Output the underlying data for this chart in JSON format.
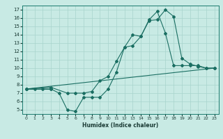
{
  "title": "",
  "xlabel": "Humidex (Indice chaleur)",
  "xlim": [
    -0.5,
    23.5
  ],
  "ylim": [
    4.5,
    17.5
  ],
  "xticks": [
    0,
    1,
    2,
    3,
    4,
    5,
    6,
    7,
    8,
    9,
    10,
    11,
    12,
    13,
    14,
    15,
    16,
    17,
    18,
    19,
    20,
    21,
    22,
    23
  ],
  "yticks": [
    5,
    6,
    7,
    8,
    9,
    10,
    11,
    12,
    13,
    14,
    15,
    16,
    17
  ],
  "bg_color": "#c8eae4",
  "line_color": "#1a6e62",
  "grid_color": "#a8d4cc",
  "line1_x": [
    0,
    1,
    2,
    3
  ],
  "line1_y": [
    7.5,
    7.5,
    7.5,
    7.5
  ],
  "line2_x": [
    0,
    3,
    4,
    5,
    6,
    7,
    8,
    9,
    10,
    11,
    12,
    13,
    14,
    15,
    16,
    17,
    18,
    19,
    20,
    21,
    22,
    23
  ],
  "line2_y": [
    7.5,
    7.5,
    7.0,
    5.0,
    4.8,
    6.5,
    6.5,
    6.5,
    7.5,
    9.5,
    12.5,
    12.7,
    13.8,
    15.7,
    15.8,
    17.0,
    16.2,
    11.2,
    10.5,
    10.2,
    10.0,
    10.0
  ],
  "line3_x": [
    0,
    3,
    5,
    6,
    7,
    8,
    9,
    10,
    11,
    12,
    13,
    14,
    15,
    16,
    17,
    18,
    19,
    20,
    21,
    22,
    23
  ],
  "line3_y": [
    7.5,
    7.7,
    7.0,
    7.0,
    7.0,
    7.2,
    8.5,
    9.0,
    10.8,
    12.5,
    14.0,
    13.8,
    15.8,
    16.8,
    14.2,
    10.3,
    10.3,
    10.3,
    10.3,
    10.0,
    10.0
  ],
  "line4_x": [
    0,
    23
  ],
  "line4_y": [
    7.5,
    10.0
  ]
}
